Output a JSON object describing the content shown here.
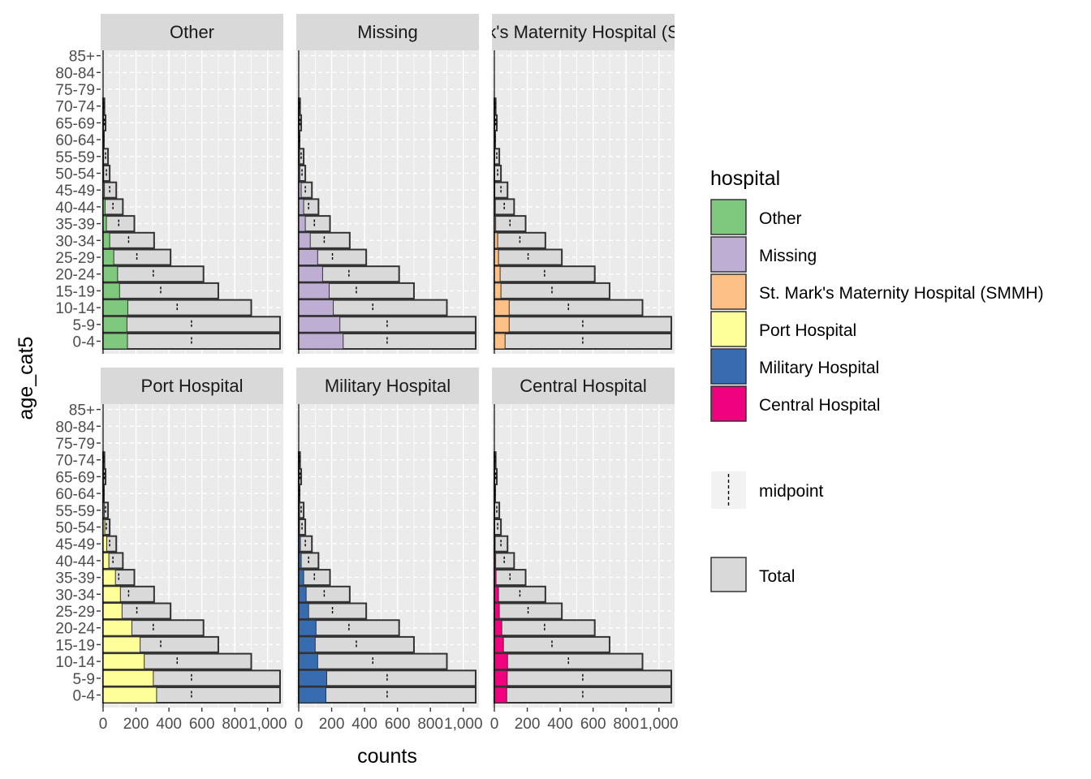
{
  "chart_data": {
    "type": "bar",
    "orientation": "horizontal",
    "layout": "faceted",
    "xlabel": "counts",
    "ylabel": "age_cat5",
    "xlim": [
      0,
      1080
    ],
    "x_ticks": [
      0,
      200,
      400,
      600,
      800,
      1000
    ],
    "x_tick_labels": [
      "0",
      "200",
      "400",
      "600",
      "800",
      "1,000"
    ],
    "categories": [
      "0-4",
      "5-9",
      "10-14",
      "15-19",
      "20-24",
      "25-29",
      "30-34",
      "35-39",
      "40-44",
      "45-49",
      "50-54",
      "55-59",
      "60-64",
      "65-69",
      "70-74",
      "75-79",
      "80-84",
      "85+"
    ],
    "total": [
      1075,
      1075,
      900,
      700,
      610,
      410,
      310,
      190,
      120,
      80,
      40,
      30,
      5,
      15,
      8,
      0,
      0,
      0
    ],
    "midpoint": [
      537,
      537,
      450,
      350,
      305,
      205,
      155,
      95,
      60,
      40,
      20,
      15,
      3,
      8,
      4,
      0,
      0,
      0
    ],
    "facets": [
      {
        "name": "Other",
        "values": [
          148,
          145,
          150,
          100,
          88,
          65,
          40,
          20,
          12,
          8,
          4,
          3,
          0,
          1,
          0,
          0,
          0,
          0
        ]
      },
      {
        "name": "Missing",
        "values": [
          270,
          250,
          210,
          185,
          145,
          115,
          70,
          40,
          30,
          15,
          7,
          5,
          1,
          2,
          1,
          0,
          0,
          0
        ]
      },
      {
        "name": "St. Mark's Maternity Hospital (SMMH)",
        "strip_label": "k's Maternity Hospital (S",
        "values": [
          65,
          90,
          90,
          40,
          35,
          25,
          20,
          8,
          6,
          3,
          2,
          1,
          0,
          0,
          0,
          0,
          0,
          0
        ]
      },
      {
        "name": "Port Hospital",
        "values": [
          325,
          305,
          250,
          225,
          175,
          115,
          105,
          75,
          35,
          22,
          10,
          7,
          1,
          3,
          1,
          0,
          0,
          0
        ]
      },
      {
        "name": "Military Hospital",
        "values": [
          165,
          170,
          115,
          100,
          105,
          60,
          45,
          30,
          15,
          10,
          5,
          5,
          1,
          2,
          1,
          0,
          0,
          0
        ]
      },
      {
        "name": "Central Hospital",
        "values": [
          75,
          78,
          80,
          55,
          45,
          30,
          25,
          10,
          8,
          5,
          2,
          1,
          0,
          0,
          0,
          0,
          0,
          0
        ]
      }
    ],
    "legend": {
      "title": "hospital",
      "placement": "right",
      "items": [
        {
          "label": "Other",
          "color": "#7fc97f"
        },
        {
          "label": "Missing",
          "color": "#beaed4"
        },
        {
          "label": "St. Mark's Maternity Hospital (SMMH)",
          "color": "#fdc086"
        },
        {
          "label": "Port Hospital",
          "color": "#ffff99"
        },
        {
          "label": "Military Hospital",
          "color": "#386cb0"
        },
        {
          "label": "Central Hospital",
          "color": "#f0027f"
        }
      ],
      "midpoint_label": "midpoint",
      "total_label": "Total"
    },
    "colors": {
      "panel_bg": "#ebebeb",
      "grid": "#ffffff",
      "strip_bg": "#d9d9d9",
      "total_fill": "#d9d9d9",
      "bar_outline": "#333333"
    },
    "grid": true
  }
}
